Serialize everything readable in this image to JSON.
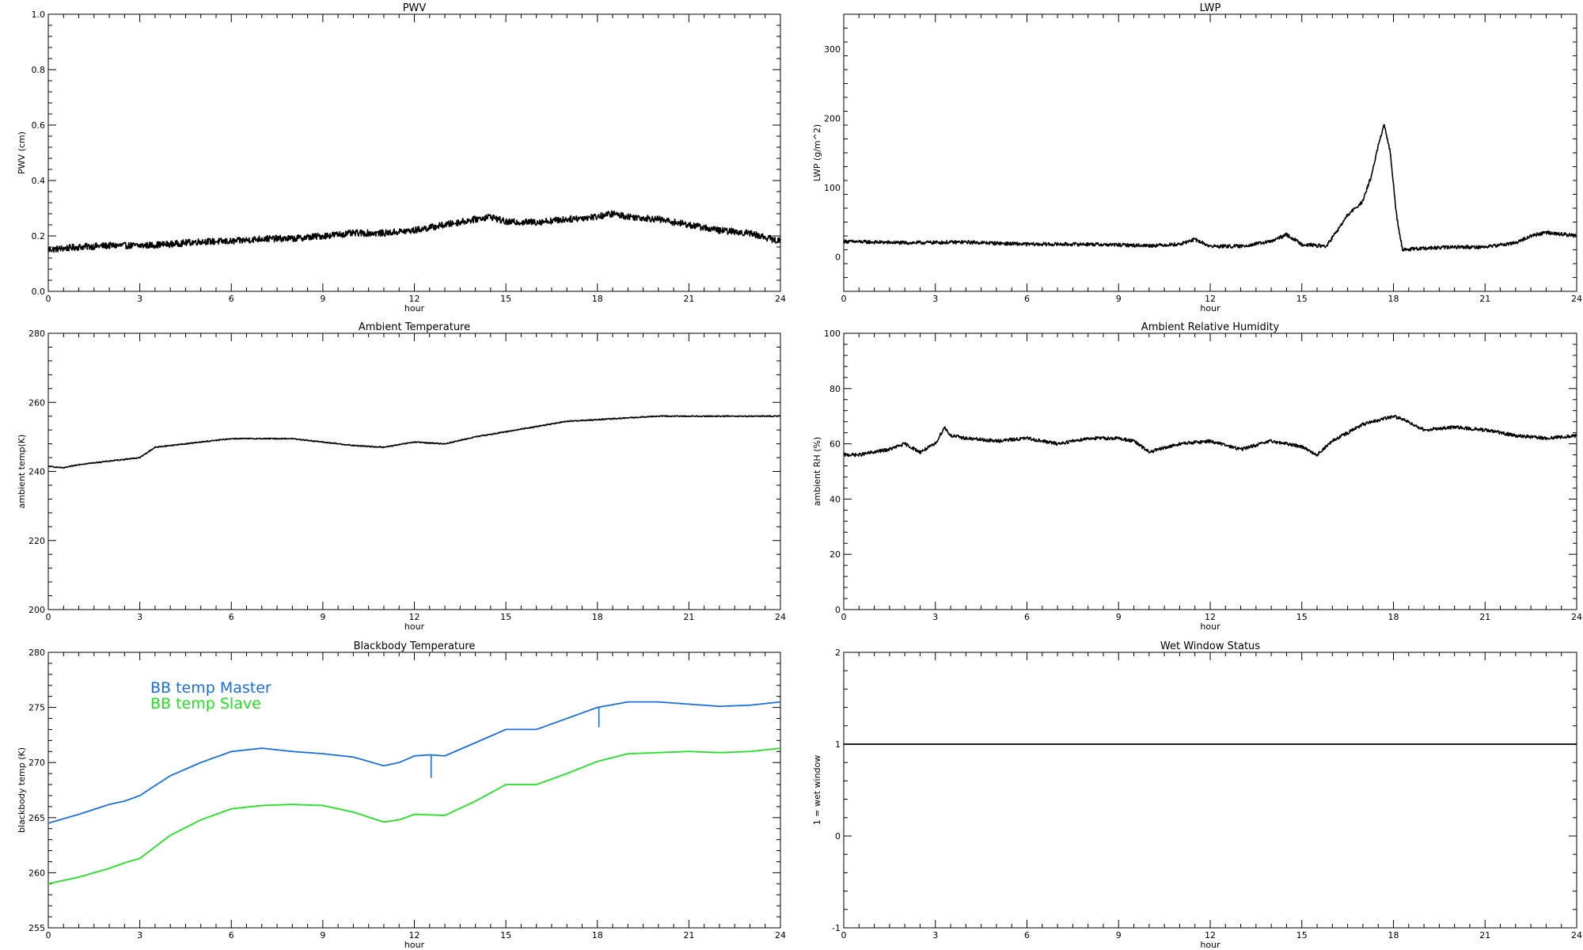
{
  "chart_data": [
    {
      "id": "pwv",
      "type": "line",
      "title": "PWV",
      "xlabel": "hour",
      "ylabel": "PWV (cm)",
      "xlim": [
        0,
        24
      ],
      "ylim": [
        0,
        1
      ],
      "xticks": [
        0,
        3,
        6,
        9,
        12,
        15,
        18,
        21,
        24
      ],
      "xtick_labels": [
        "0",
        "3",
        "6",
        "9",
        "12",
        "15",
        "18",
        "21",
        "24"
      ],
      "yticks": [
        0,
        0.2,
        0.4,
        0.6,
        0.8,
        1.0
      ],
      "ytick_labels": [
        "0.0",
        "0.2",
        "0.4",
        "0.6",
        "0.8",
        "1.0"
      ],
      "grid": false,
      "noise": 0.012,
      "series": [
        {
          "color": "#000000",
          "x": [
            0,
            1,
            2,
            3,
            4,
            5,
            6,
            7,
            8,
            9,
            10,
            11,
            12,
            13,
            14,
            14.5,
            15,
            16,
            17,
            18,
            18.5,
            19,
            20,
            21,
            22,
            23,
            24
          ],
          "y": [
            0.15,
            0.16,
            0.165,
            0.165,
            0.17,
            0.18,
            0.18,
            0.19,
            0.19,
            0.2,
            0.21,
            0.21,
            0.22,
            0.24,
            0.26,
            0.27,
            0.25,
            0.25,
            0.26,
            0.27,
            0.28,
            0.27,
            0.26,
            0.24,
            0.22,
            0.21,
            0.18
          ]
        }
      ]
    },
    {
      "id": "lwp",
      "type": "line",
      "title": "LWP",
      "xlabel": "hour",
      "ylabel": "LWP (g/m^2)",
      "xlim": [
        0,
        24
      ],
      "ylim": [
        -50,
        350
      ],
      "xticks": [
        0,
        3,
        6,
        9,
        12,
        15,
        18,
        21,
        24
      ],
      "xtick_labels": [
        "0",
        "3",
        "6",
        "9",
        "12",
        "15",
        "18",
        "21",
        "24"
      ],
      "yticks": [
        0,
        100,
        200,
        300
      ],
      "ytick_labels": [
        "0",
        "100",
        "200",
        "300"
      ],
      "grid": false,
      "noise": 2.5,
      "series": [
        {
          "color": "#000000",
          "x": [
            0,
            2,
            4,
            6,
            8,
            10,
            11,
            11.5,
            12,
            13,
            14,
            14.5,
            15,
            15.8,
            16.2,
            16.5,
            17,
            17.3,
            17.5,
            17.7,
            17.9,
            18.1,
            18.3,
            19,
            20,
            21,
            22,
            22.5,
            23,
            24
          ],
          "y": [
            22,
            20,
            21,
            18,
            18,
            16,
            18,
            25,
            15,
            15,
            22,
            32,
            18,
            15,
            40,
            60,
            80,
            120,
            160,
            190,
            150,
            60,
            10,
            12,
            14,
            14,
            20,
            30,
            35,
            30
          ]
        }
      ]
    },
    {
      "id": "ambient_temp",
      "type": "line",
      "title": "Ambient Temperature",
      "xlabel": "hour",
      "ylabel": "ambient temp(K)",
      "xlim": [
        0,
        24
      ],
      "ylim": [
        200,
        280
      ],
      "xticks": [
        0,
        3,
        6,
        9,
        12,
        15,
        18,
        21,
        24
      ],
      "xtick_labels": [
        "0",
        "3",
        "6",
        "9",
        "12",
        "15",
        "18",
        "21",
        "24"
      ],
      "yticks": [
        200,
        220,
        240,
        260,
        280
      ],
      "ytick_labels": [
        "200",
        "220",
        "240",
        "260",
        "280"
      ],
      "grid": false,
      "noise": 0.15,
      "series": [
        {
          "color": "#000000",
          "x": [
            0,
            0.5,
            1,
            2,
            3,
            3.5,
            4,
            5,
            6,
            7,
            8,
            9,
            10,
            11,
            12,
            13,
            14,
            15,
            16,
            17,
            18,
            19,
            20,
            22,
            24
          ],
          "y": [
            241.5,
            241,
            242,
            243,
            244,
            247,
            247.5,
            248.5,
            249.5,
            249.5,
            249.5,
            248.5,
            247.5,
            247,
            248.5,
            248,
            250,
            251.5,
            253,
            254.5,
            255,
            255.5,
            256,
            256,
            256
          ]
        }
      ]
    },
    {
      "id": "ambient_rh",
      "type": "line",
      "title": "Ambient Relative Humidity",
      "xlabel": "hour",
      "ylabel": "ambient RH (%)",
      "xlim": [
        0,
        24
      ],
      "ylim": [
        0,
        100
      ],
      "xticks": [
        0,
        3,
        6,
        9,
        12,
        15,
        18,
        21,
        24
      ],
      "xtick_labels": [
        "0",
        "3",
        "6",
        "9",
        "12",
        "15",
        "18",
        "21",
        "24"
      ],
      "yticks": [
        0,
        20,
        40,
        60,
        80,
        100
      ],
      "ytick_labels": [
        "0",
        "20",
        "40",
        "60",
        "80",
        "100"
      ],
      "grid": false,
      "noise": 0.6,
      "series": [
        {
          "color": "#000000",
          "x": [
            0,
            0.5,
            1,
            1.5,
            2,
            2.5,
            3,
            3.3,
            3.5,
            4,
            5,
            6,
            7,
            8,
            9,
            9.5,
            10,
            11,
            12,
            13,
            14,
            15,
            15.5,
            16,
            16.5,
            17,
            18,
            18.5,
            19,
            20,
            21,
            22,
            23,
            24
          ],
          "y": [
            56,
            56,
            57,
            58,
            60,
            57,
            60,
            66,
            63,
            62,
            61,
            62,
            60,
            62,
            62,
            61,
            57,
            60,
            61,
            58,
            61,
            59,
            56,
            61,
            64,
            67,
            70,
            68,
            65,
            66,
            65,
            63,
            62,
            63
          ]
        }
      ]
    },
    {
      "id": "bb_temp",
      "type": "line",
      "title": "Blackbody Temperature",
      "xlabel": "hour",
      "ylabel": "blackbody temp (K)",
      "xlim": [
        0,
        24
      ],
      "ylim": [
        255,
        280
      ],
      "xticks": [
        0,
        3,
        6,
        9,
        12,
        15,
        18,
        21,
        24
      ],
      "xtick_labels": [
        "0",
        "3",
        "6",
        "9",
        "12",
        "15",
        "18",
        "21",
        "24"
      ],
      "yticks": [
        255,
        260,
        265,
        270,
        275,
        280
      ],
      "ytick_labels": [
        "255",
        "260",
        "265",
        "270",
        "275",
        "280"
      ],
      "grid": false,
      "noise": 0,
      "legend": [
        {
          "label": "BB temp Master",
          "color": "#1a6fe0"
        },
        {
          "label": "BB temp Slave",
          "color": "#22e022"
        }
      ],
      "series": [
        {
          "name": "BB temp Master",
          "color": "#1a6fe0",
          "x": [
            0,
            1,
            2,
            2.5,
            3,
            4,
            5,
            6,
            7,
            8,
            9,
            10,
            11,
            11.5,
            12,
            12.5,
            13,
            14,
            15,
            16,
            17,
            18,
            19,
            20,
            21,
            22,
            23,
            24
          ],
          "y": [
            264.5,
            265.3,
            266.2,
            266.5,
            267,
            268.8,
            270,
            271,
            271.3,
            271,
            270.8,
            270.5,
            269.7,
            270,
            270.6,
            270.7,
            270.6,
            271.8,
            273,
            273,
            274,
            275,
            275.5,
            275.5,
            275.3,
            275.1,
            275.2,
            275.5
          ],
          "spikes": [
            {
              "x": 12.55,
              "y": 268.6
            },
            {
              "x": 18.05,
              "y": 273.2
            }
          ]
        },
        {
          "name": "BB temp Slave",
          "color": "#22e022",
          "x": [
            0,
            1,
            2,
            2.5,
            3,
            4,
            5,
            6,
            7,
            8,
            9,
            10,
            11,
            11.5,
            12,
            13,
            14,
            15,
            16,
            17,
            18,
            19,
            20,
            21,
            22,
            23,
            24
          ],
          "y": [
            259,
            259.6,
            260.4,
            260.9,
            261.3,
            263.4,
            264.8,
            265.8,
            266.1,
            266.2,
            266.1,
            265.5,
            264.6,
            264.8,
            265.3,
            265.2,
            266.5,
            268,
            268,
            269,
            270.1,
            270.8,
            270.9,
            271,
            270.9,
            271,
            271.3
          ]
        }
      ]
    },
    {
      "id": "wet_window",
      "type": "line",
      "title": "Wet Window Status",
      "xlabel": "hour",
      "ylabel": "1 = wet window",
      "xlim": [
        0,
        24
      ],
      "ylim": [
        -1,
        2
      ],
      "xticks": [
        0,
        3,
        6,
        9,
        12,
        15,
        18,
        21,
        24
      ],
      "xtick_labels": [
        "0",
        "3",
        "6",
        "9",
        "12",
        "15",
        "18",
        "21",
        "24"
      ],
      "yticks": [
        -1,
        0,
        1,
        2
      ],
      "ytick_labels": [
        "-1",
        "0",
        "1",
        "2"
      ],
      "grid": false,
      "noise": 0,
      "series": [
        {
          "color": "#000000",
          "x": [
            0,
            24
          ],
          "y": [
            1,
            1
          ]
        }
      ]
    }
  ]
}
